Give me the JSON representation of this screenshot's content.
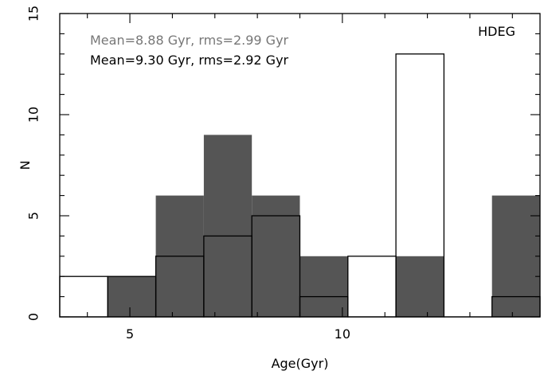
{
  "chart_data": {
    "type": "bar",
    "label": "HDEG",
    "xlabel": "Age(Gyr)",
    "ylabel": "N",
    "xlim": [
      3.35,
      14.65
    ],
    "ylim": [
      0,
      15
    ],
    "xticks": [
      5,
      10
    ],
    "yticks": [
      0,
      5,
      10,
      15
    ],
    "grid": false,
    "bin_edges": [
      3.35,
      4.48,
      5.61,
      6.74,
      7.87,
      9.0,
      10.13,
      11.26,
      12.39,
      13.52,
      14.65
    ],
    "series": [
      {
        "style": "filled",
        "color": "#555555",
        "values": [
          0,
          2,
          6,
          9,
          6,
          3,
          0,
          3,
          0,
          6
        ]
      },
      {
        "style": "outline",
        "color": "#000000",
        "values": [
          2,
          2,
          3,
          4,
          5,
          1,
          3,
          13,
          0,
          1
        ]
      }
    ],
    "annotations": [
      {
        "text": "Mean=8.88 Gyr, rms=2.99 Gyr",
        "color": "#777777"
      },
      {
        "text": "Mean=9.30 Gyr, rms=2.92 Gyr",
        "color": "#000000"
      }
    ]
  }
}
